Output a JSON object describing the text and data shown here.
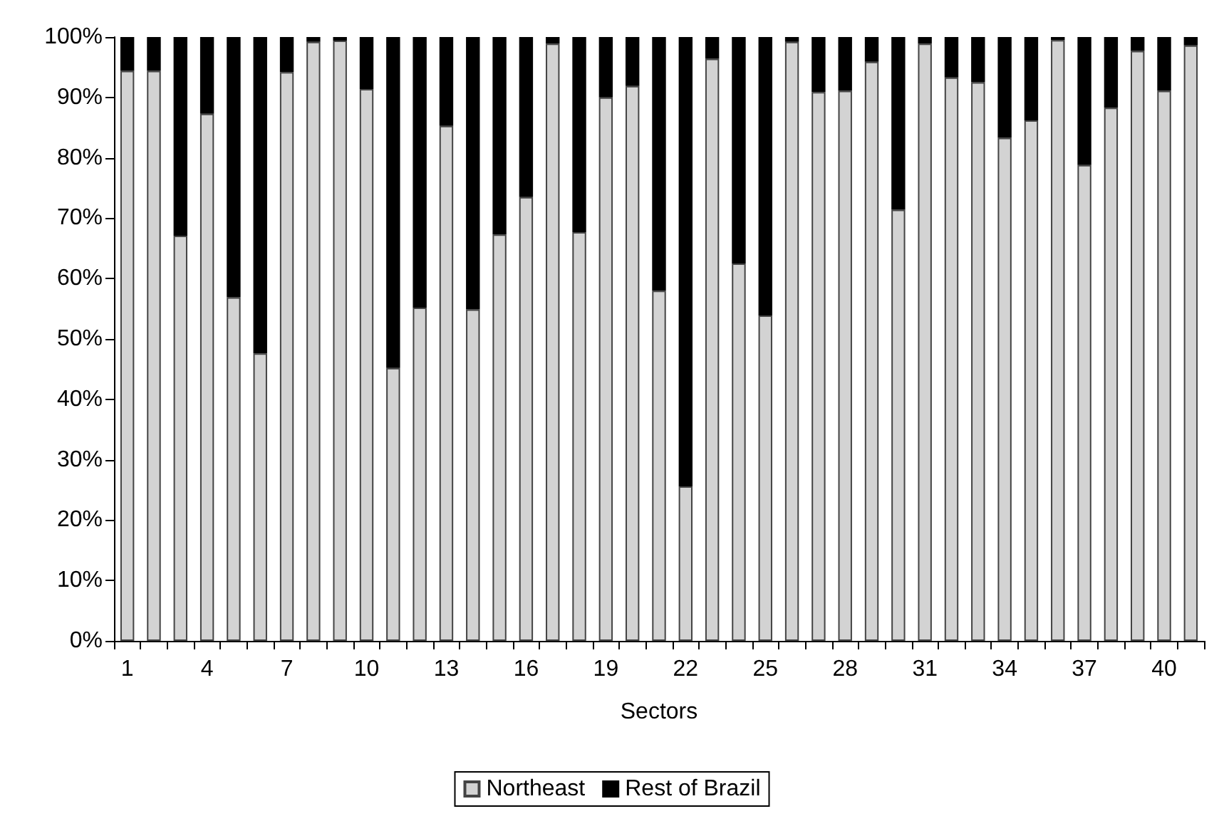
{
  "chart_data": {
    "type": "bar",
    "stacked": true,
    "xlabel": "Sectors",
    "categories": [
      "1",
      null,
      null,
      "4",
      null,
      null,
      "7",
      null,
      null,
      "10",
      null,
      null,
      "13",
      null,
      null,
      "16",
      null,
      null,
      "19",
      null,
      null,
      "22",
      null,
      null,
      "25",
      null,
      null,
      "28",
      null,
      null,
      "31",
      null,
      null,
      "34",
      null,
      null,
      "37",
      null,
      null,
      "40",
      null
    ],
    "series": [
      {
        "name": "Northeast",
        "color": "#d3d3d3",
        "values": [
          94.4,
          94.4,
          67.1,
          87.3,
          56.9,
          47.6,
          94.2,
          99.2,
          99.4,
          91.4,
          45.2,
          55.2,
          85.3,
          54.9,
          67.3,
          73.5,
          98.9,
          67.7,
          90.0,
          91.9,
          58.0,
          25.6,
          96.4,
          62.5,
          53.9,
          99.2,
          90.9,
          91.1,
          95.9,
          71.4,
          98.9,
          93.3,
          92.5,
          83.3,
          86.2,
          99.5,
          78.8,
          88.3,
          97.7,
          91.1,
          98.6
        ]
      },
      {
        "name": "Rest of Brazil",
        "color": "#000000",
        "values": [
          5.6,
          5.6,
          32.9,
          12.7,
          43.1,
          52.4,
          5.8,
          0.8,
          0.6,
          8.6,
          54.8,
          44.8,
          14.7,
          45.1,
          32.7,
          26.5,
          1.1,
          32.3,
          10.0,
          8.1,
          42.0,
          74.4,
          3.6,
          37.5,
          46.1,
          0.8,
          9.1,
          8.9,
          4.1,
          28.6,
          1.1,
          6.7,
          7.5,
          16.7,
          13.8,
          0.5,
          21.2,
          11.7,
          2.3,
          8.9,
          1.4
        ]
      }
    ],
    "ylim": [
      0,
      100
    ],
    "yticks": [
      {
        "value": 0,
        "label": "0%"
      },
      {
        "value": 10,
        "label": "10%"
      },
      {
        "value": 20,
        "label": "20%"
      },
      {
        "value": 30,
        "label": "30%"
      },
      {
        "value": 40,
        "label": "40%"
      },
      {
        "value": 50,
        "label": "50%"
      },
      {
        "value": 60,
        "label": "60%"
      },
      {
        "value": 70,
        "label": "70%"
      },
      {
        "value": 80,
        "label": "80%"
      },
      {
        "value": 90,
        "label": "90%"
      },
      {
        "value": 100,
        "label": "100%"
      }
    ],
    "grid": false,
    "legend": "bottom"
  }
}
